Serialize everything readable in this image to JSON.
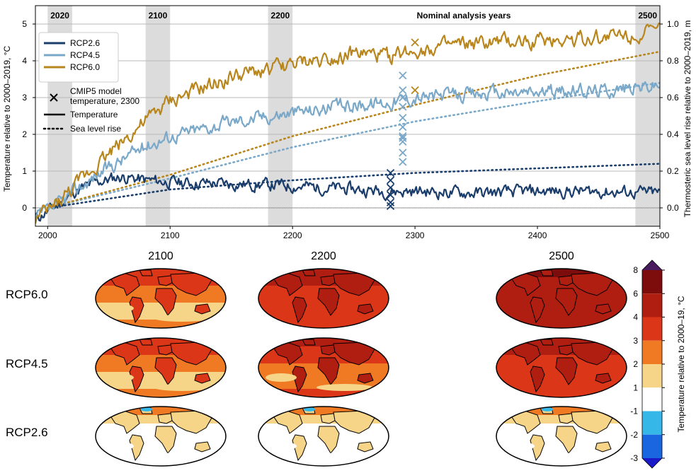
{
  "chart_data": [
    {
      "type": "line",
      "x_range": [
        1990,
        2500
      ],
      "xticks": [
        2000,
        2100,
        2200,
        2300,
        2400,
        2500
      ],
      "ylim": [
        -0.5,
        5.5
      ],
      "yticks": [
        0,
        1,
        2,
        3,
        4,
        5
      ],
      "ylabel": "Temperature relative to 2000–2019, °C",
      "y2lim": [
        -0.1,
        1.1
      ],
      "y2ticks": [
        "0.0",
        "0.2",
        "0.4",
        "0.6",
        "0.8",
        "1.0"
      ],
      "y2label": "Thermosteric sea level rise relative to 2000–2019, m",
      "grid": true,
      "legend_position": "upper-left",
      "annotation": "Nominal analysis years",
      "analysis_bands": [
        {
          "label": "2020",
          "start": 2000,
          "end": 2020
        },
        {
          "label": "2100",
          "start": 2080,
          "end": 2100
        },
        {
          "label": "2200",
          "start": 2180,
          "end": 2200
        },
        {
          "label": "2500",
          "start": 2480,
          "end": 2500
        }
      ],
      "series": [
        {
          "name": "RCP2.6",
          "color": "#1a3d6b",
          "temperature": {
            "x": [
              1990,
              2000,
              2010,
              2020,
              2040,
              2060,
              2080,
              2100,
              2150,
              2200,
              2250,
              2280,
              2300,
              2350,
              2400,
              2450,
              2500
            ],
            "y": [
              -0.3,
              -0.1,
              0.1,
              0.4,
              0.7,
              0.85,
              0.75,
              0.7,
              0.65,
              0.6,
              0.5,
              0.45,
              0.45,
              0.4,
              0.45,
              0.45,
              0.4
            ]
          },
          "sea_level": {
            "x": [
              2000,
              2100,
              2200,
              2300,
              2400,
              2500
            ],
            "y": [
              0.0,
              0.1,
              0.15,
              0.19,
              0.215,
              0.24
            ]
          },
          "cmip5_2300": [
            0.95,
            0.75,
            0.55,
            0.35,
            0.15,
            0.05
          ]
        },
        {
          "name": "RCP4.5",
          "color": "#7aa8c8",
          "temperature": {
            "x": [
              1990,
              2000,
              2010,
              2020,
              2040,
              2060,
              2080,
              2100,
              2150,
              2200,
              2250,
              2280,
              2300,
              2350,
              2400,
              2450,
              2500
            ],
            "y": [
              -0.3,
              -0.1,
              0.1,
              0.4,
              0.9,
              1.3,
              1.7,
              1.95,
              2.35,
              2.6,
              2.8,
              2.9,
              3.0,
              3.1,
              3.15,
              3.2,
              3.35
            ]
          },
          "sea_level": {
            "x": [
              2000,
              2100,
              2200,
              2300,
              2400,
              2500
            ],
            "y": [
              0.0,
              0.16,
              0.33,
              0.47,
              0.58,
              0.68
            ]
          },
          "cmip5_2300": [
            3.6,
            3.2,
            3.0,
            2.75,
            2.45,
            2.2,
            1.95,
            1.9,
            1.8,
            1.5,
            1.25
          ]
        },
        {
          "name": "RCP6.0",
          "color": "#b8861c",
          "temperature": {
            "x": [
              1990,
              2000,
              2010,
              2020,
              2040,
              2060,
              2080,
              2100,
              2150,
              2200,
              2250,
              2280,
              2300,
              2350,
              2400,
              2450,
              2500
            ],
            "y": [
              -0.3,
              -0.1,
              0.2,
              0.5,
              1.2,
              1.8,
              2.35,
              2.9,
              3.55,
              3.9,
              4.2,
              4.1,
              4.3,
              4.45,
              4.55,
              4.65,
              4.8
            ]
          },
          "sea_level": {
            "x": [
              2000,
              2100,
              2200,
              2300,
              2400,
              2500
            ],
            "y": [
              0.0,
              0.18,
              0.39,
              0.56,
              0.72,
              0.85
            ]
          },
          "cmip5_2300": [
            4.5,
            3.2
          ]
        }
      ],
      "legend": {
        "series_entries": [
          "RCP2.6",
          "RCP4.5",
          "RCP6.0"
        ],
        "marker_entry": "CMIP5 model\ntemperature, 2300",
        "style_entries": [
          {
            "style": "solid",
            "label": "Temperature"
          },
          {
            "style": "dotted",
            "label": "Sea level rise"
          }
        ]
      }
    },
    {
      "type": "heatmap",
      "subtype": "global map panels",
      "columns": [
        "2100",
        "2200",
        "2500"
      ],
      "rows": [
        "RCP6.0",
        "RCP4.5",
        "RCP2.6"
      ],
      "colorbar": {
        "label": "Temperature relative to 2000–19, °C",
        "ticks": [
          8,
          6,
          4,
          3,
          2,
          1,
          -1,
          -2,
          -3
        ],
        "extend": "both",
        "bins": [
          {
            "from": 6,
            "to": 8,
            "color": "#7d0d0d"
          },
          {
            "from": 4,
            "to": 6,
            "color": "#b01e12"
          },
          {
            "from": 3,
            "to": 4,
            "color": "#db3618"
          },
          {
            "from": 2,
            "to": 3,
            "color": "#f07a24"
          },
          {
            "from": 1,
            "to": 2,
            "color": "#f6d488"
          },
          {
            "from": -1,
            "to": 1,
            "color": "#ffffff"
          },
          {
            "from": -2,
            "to": -1,
            "color": "#35b8e8"
          },
          {
            "from": -3,
            "to": -2,
            "color": "#1a66e0"
          }
        ],
        "over_color": "#4a1a5e",
        "under_color": "#1a1ac8"
      },
      "mean_warming_level": {
        "RCP6.0": {
          "2100": "medium",
          "2200": "high",
          "2500": "very-high"
        },
        "RCP4.5": {
          "2100": "medium",
          "2200": "medium-high",
          "2500": "high"
        },
        "RCP2.6": {
          "2100": "low",
          "2200": "low",
          "2500": "low"
        }
      }
    }
  ]
}
